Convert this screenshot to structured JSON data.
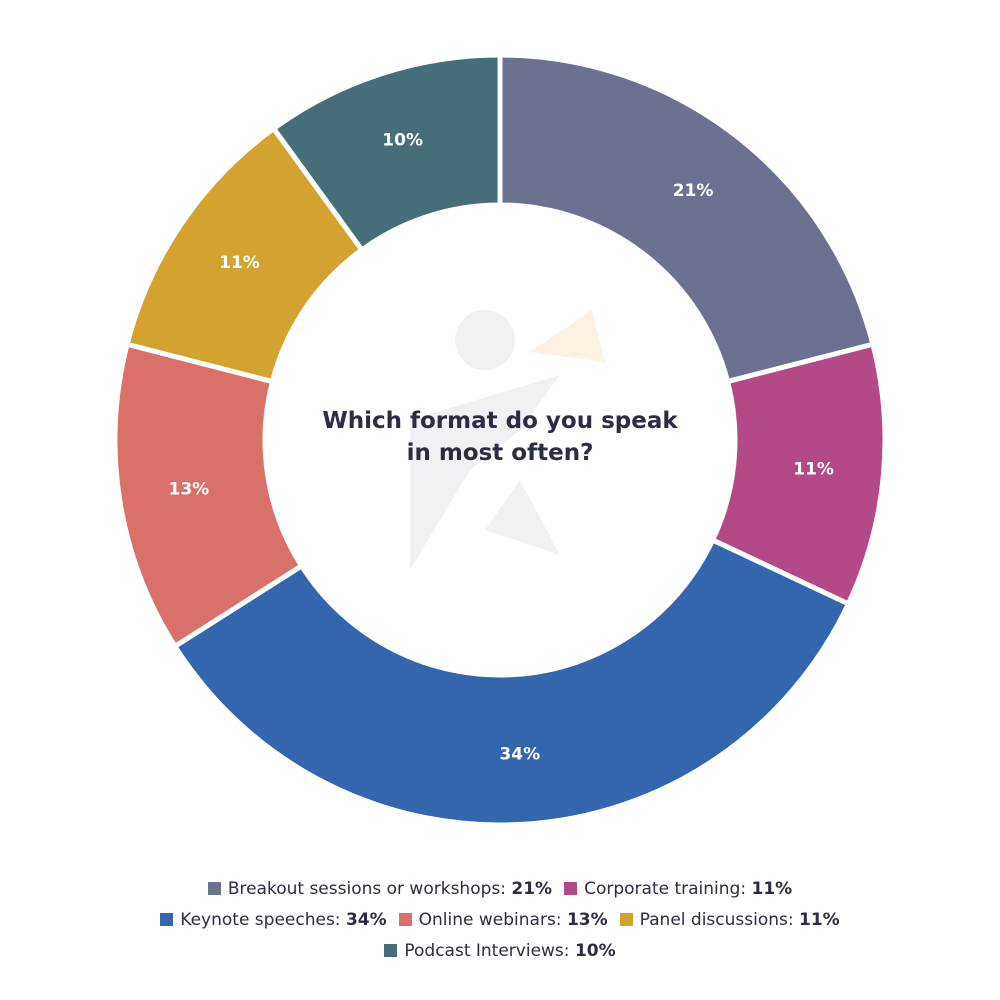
{
  "chart_data": {
    "type": "pie",
    "variant": "donut",
    "title": "Which format do you speak in most often?",
    "title_lines": [
      "Which format do you speak",
      "in most often?"
    ],
    "legend_position": "bottom",
    "slices": [
      {
        "name": "Breakout sessions or workshops",
        "value": 21,
        "label": "21%",
        "legend_value": "21%",
        "color": "#6d7190"
      },
      {
        "name": "Corporate training",
        "value": 11,
        "label": "11%",
        "legend_value": "11%",
        "color": "#b34a87"
      },
      {
        "name": "Keynote speeches",
        "value": 34,
        "label": "34%",
        "legend_value": "34%",
        "color": "#3366ad"
      },
      {
        "name": "Online webinars",
        "value": 13,
        "label": "13%",
        "legend_value": "13%",
        "color": "#d9716a"
      },
      {
        "name": "Panel discussions",
        "value": 11,
        "label": "11%",
        "legend_value": "11%",
        "color": "#d3a22f"
      },
      {
        "name": "Podcast Interviews",
        "value": 10,
        "label": "10%",
        "legend_value": "10%",
        "color": "#466e78"
      }
    ],
    "legend_rows": [
      [
        0,
        1
      ],
      [
        2,
        3,
        4
      ],
      [
        5
      ]
    ]
  }
}
